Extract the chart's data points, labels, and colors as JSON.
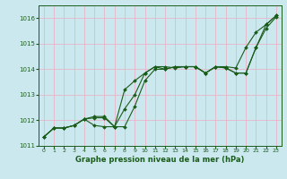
{
  "xlabel": "Graphe pression niveau de la mer (hPa)",
  "bg_color": "#cce8ef",
  "grid_color": "#e8b4c8",
  "line_color": "#1a5c1a",
  "xlim": [
    -0.5,
    23.5
  ],
  "ylim": [
    1011.0,
    1016.5
  ],
  "yticks": [
    1011,
    1012,
    1013,
    1014,
    1015,
    1016
  ],
  "xticks": [
    0,
    1,
    2,
    3,
    4,
    5,
    6,
    7,
    8,
    9,
    10,
    11,
    12,
    13,
    14,
    15,
    16,
    17,
    18,
    19,
    20,
    21,
    22,
    23
  ],
  "series": [
    [
      1011.35,
      1011.7,
      1011.7,
      1011.8,
      1012.05,
      1011.8,
      1011.75,
      1011.75,
      1013.2,
      1013.55,
      1013.85,
      1014.1,
      1014.1,
      1014.05,
      1014.1,
      1014.1,
      1013.85,
      1014.1,
      1014.1,
      1014.05,
      1014.85,
      1015.45,
      1015.75,
      1016.1
    ],
    [
      1011.35,
      1011.7,
      1011.7,
      1011.8,
      1012.05,
      1012.1,
      1012.1,
      1011.75,
      1012.45,
      1013.0,
      1013.85,
      1014.1,
      1014.0,
      1014.1,
      1014.1,
      1014.1,
      1013.85,
      1014.1,
      1014.05,
      1013.85,
      1013.85,
      1014.85,
      1015.75,
      1016.1
    ],
    [
      1011.35,
      1011.7,
      1011.7,
      1011.8,
      1012.05,
      1012.15,
      1012.15,
      1011.75,
      1011.75,
      1012.55,
      1013.55,
      1014.0,
      1014.0,
      1014.1,
      1014.1,
      1014.1,
      1013.85,
      1014.1,
      1014.05,
      1013.85,
      1013.85,
      1014.85,
      1015.6,
      1016.05
    ]
  ]
}
